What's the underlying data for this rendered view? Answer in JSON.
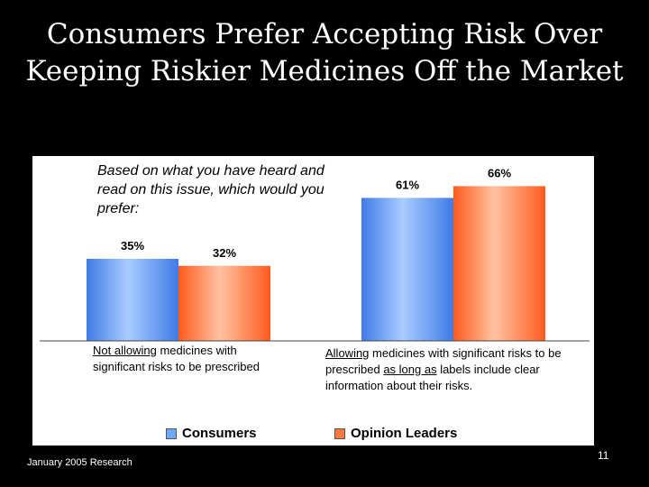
{
  "slide": {
    "title_line1": "Consumers Prefer Accepting Risk Over",
    "title_line2": "Keeping Riskier Medicines Off the Market",
    "footer": "January 2005 Research",
    "page_number": "11"
  },
  "chart_data": {
    "type": "bar",
    "question": "Based on what you have heard and read on this issue, which would you prefer:",
    "ylim": [
      0,
      100
    ],
    "categories": [
      {
        "parts": [
          {
            "text": "Not allowing",
            "underline": true
          },
          {
            "text": " medicines with significant risks to be prescribed",
            "underline": false
          }
        ]
      },
      {
        "parts": [
          {
            "text": "Allowing",
            "underline": true
          },
          {
            "text": " medicines with significant risks to be prescribed ",
            "underline": false
          },
          {
            "text": "as long as",
            "underline": true
          },
          {
            "text": " labels include clear information about their risks.",
            "underline": false
          }
        ]
      }
    ],
    "series": [
      {
        "name": "Consumers",
        "values": [
          35,
          61
        ],
        "labels": [
          "35%",
          "61%"
        ],
        "color": "#6FA8FF"
      },
      {
        "name": "Opinion Leaders",
        "values": [
          32,
          66
        ],
        "labels": [
          "32%",
          "66%"
        ],
        "color": "#FF7A3D"
      }
    ],
    "legend_position": "bottom"
  }
}
